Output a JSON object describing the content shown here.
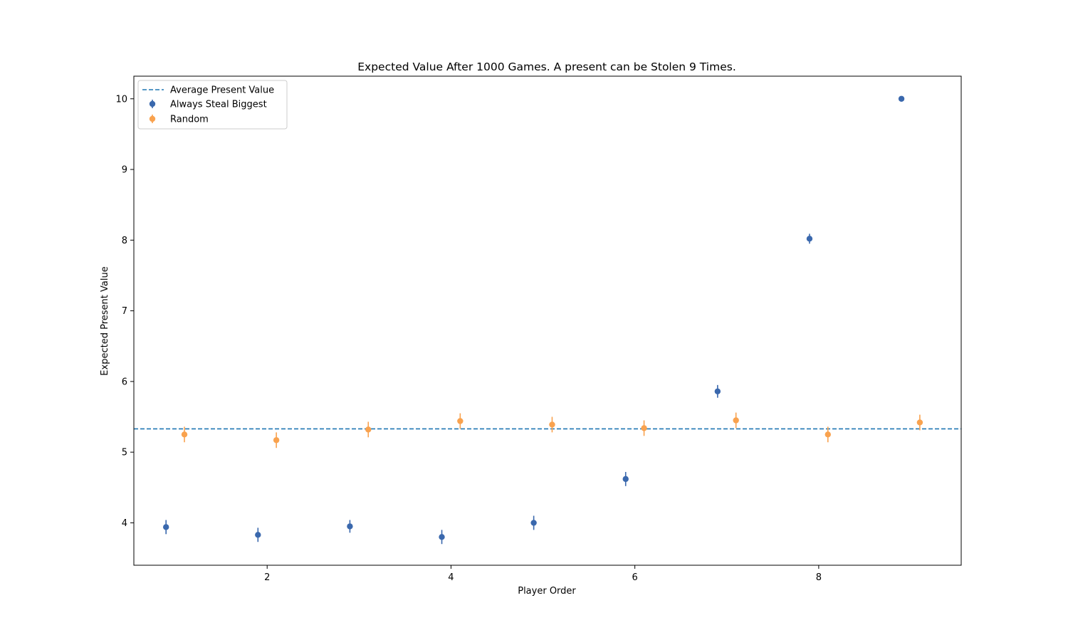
{
  "chart_data": {
    "type": "scatter",
    "title": "Expected Value After 1000 Games. A present can be Stolen 9 Times.",
    "xlabel": "Player Order",
    "ylabel": "Expected Present Value",
    "xlim": [
      0.55,
      9.55
    ],
    "ylim": [
      3.4,
      10.32
    ],
    "xticks": [
      2,
      4,
      6,
      8
    ],
    "yticks": [
      4,
      5,
      6,
      7,
      8,
      9,
      10
    ],
    "grid": false,
    "legend_position": "upper-left",
    "reference_line": {
      "name": "Average Present Value",
      "y": 5.33,
      "style": "dashed",
      "color": "#1f77b4"
    },
    "series": [
      {
        "name": "Always Steal Biggest",
        "color": "#3a68ad",
        "x": [
          0.9,
          1.9,
          2.9,
          3.9,
          4.9,
          5.9,
          6.9,
          7.9,
          8.9
        ],
        "y": [
          3.94,
          3.83,
          3.95,
          3.8,
          4.0,
          4.62,
          5.86,
          8.02,
          10.0
        ],
        "err": [
          0.1,
          0.1,
          0.09,
          0.1,
          0.1,
          0.1,
          0.09,
          0.07,
          0.0
        ]
      },
      {
        "name": "Random",
        "color": "#f9a24e",
        "x": [
          1.1,
          2.1,
          3.1,
          4.1,
          5.1,
          6.1,
          7.1,
          8.1,
          9.1
        ],
        "y": [
          5.25,
          5.17,
          5.32,
          5.44,
          5.39,
          5.34,
          5.45,
          5.25,
          5.42
        ],
        "err": [
          0.11,
          0.11,
          0.11,
          0.11,
          0.11,
          0.11,
          0.11,
          0.11,
          0.11
        ]
      }
    ]
  }
}
